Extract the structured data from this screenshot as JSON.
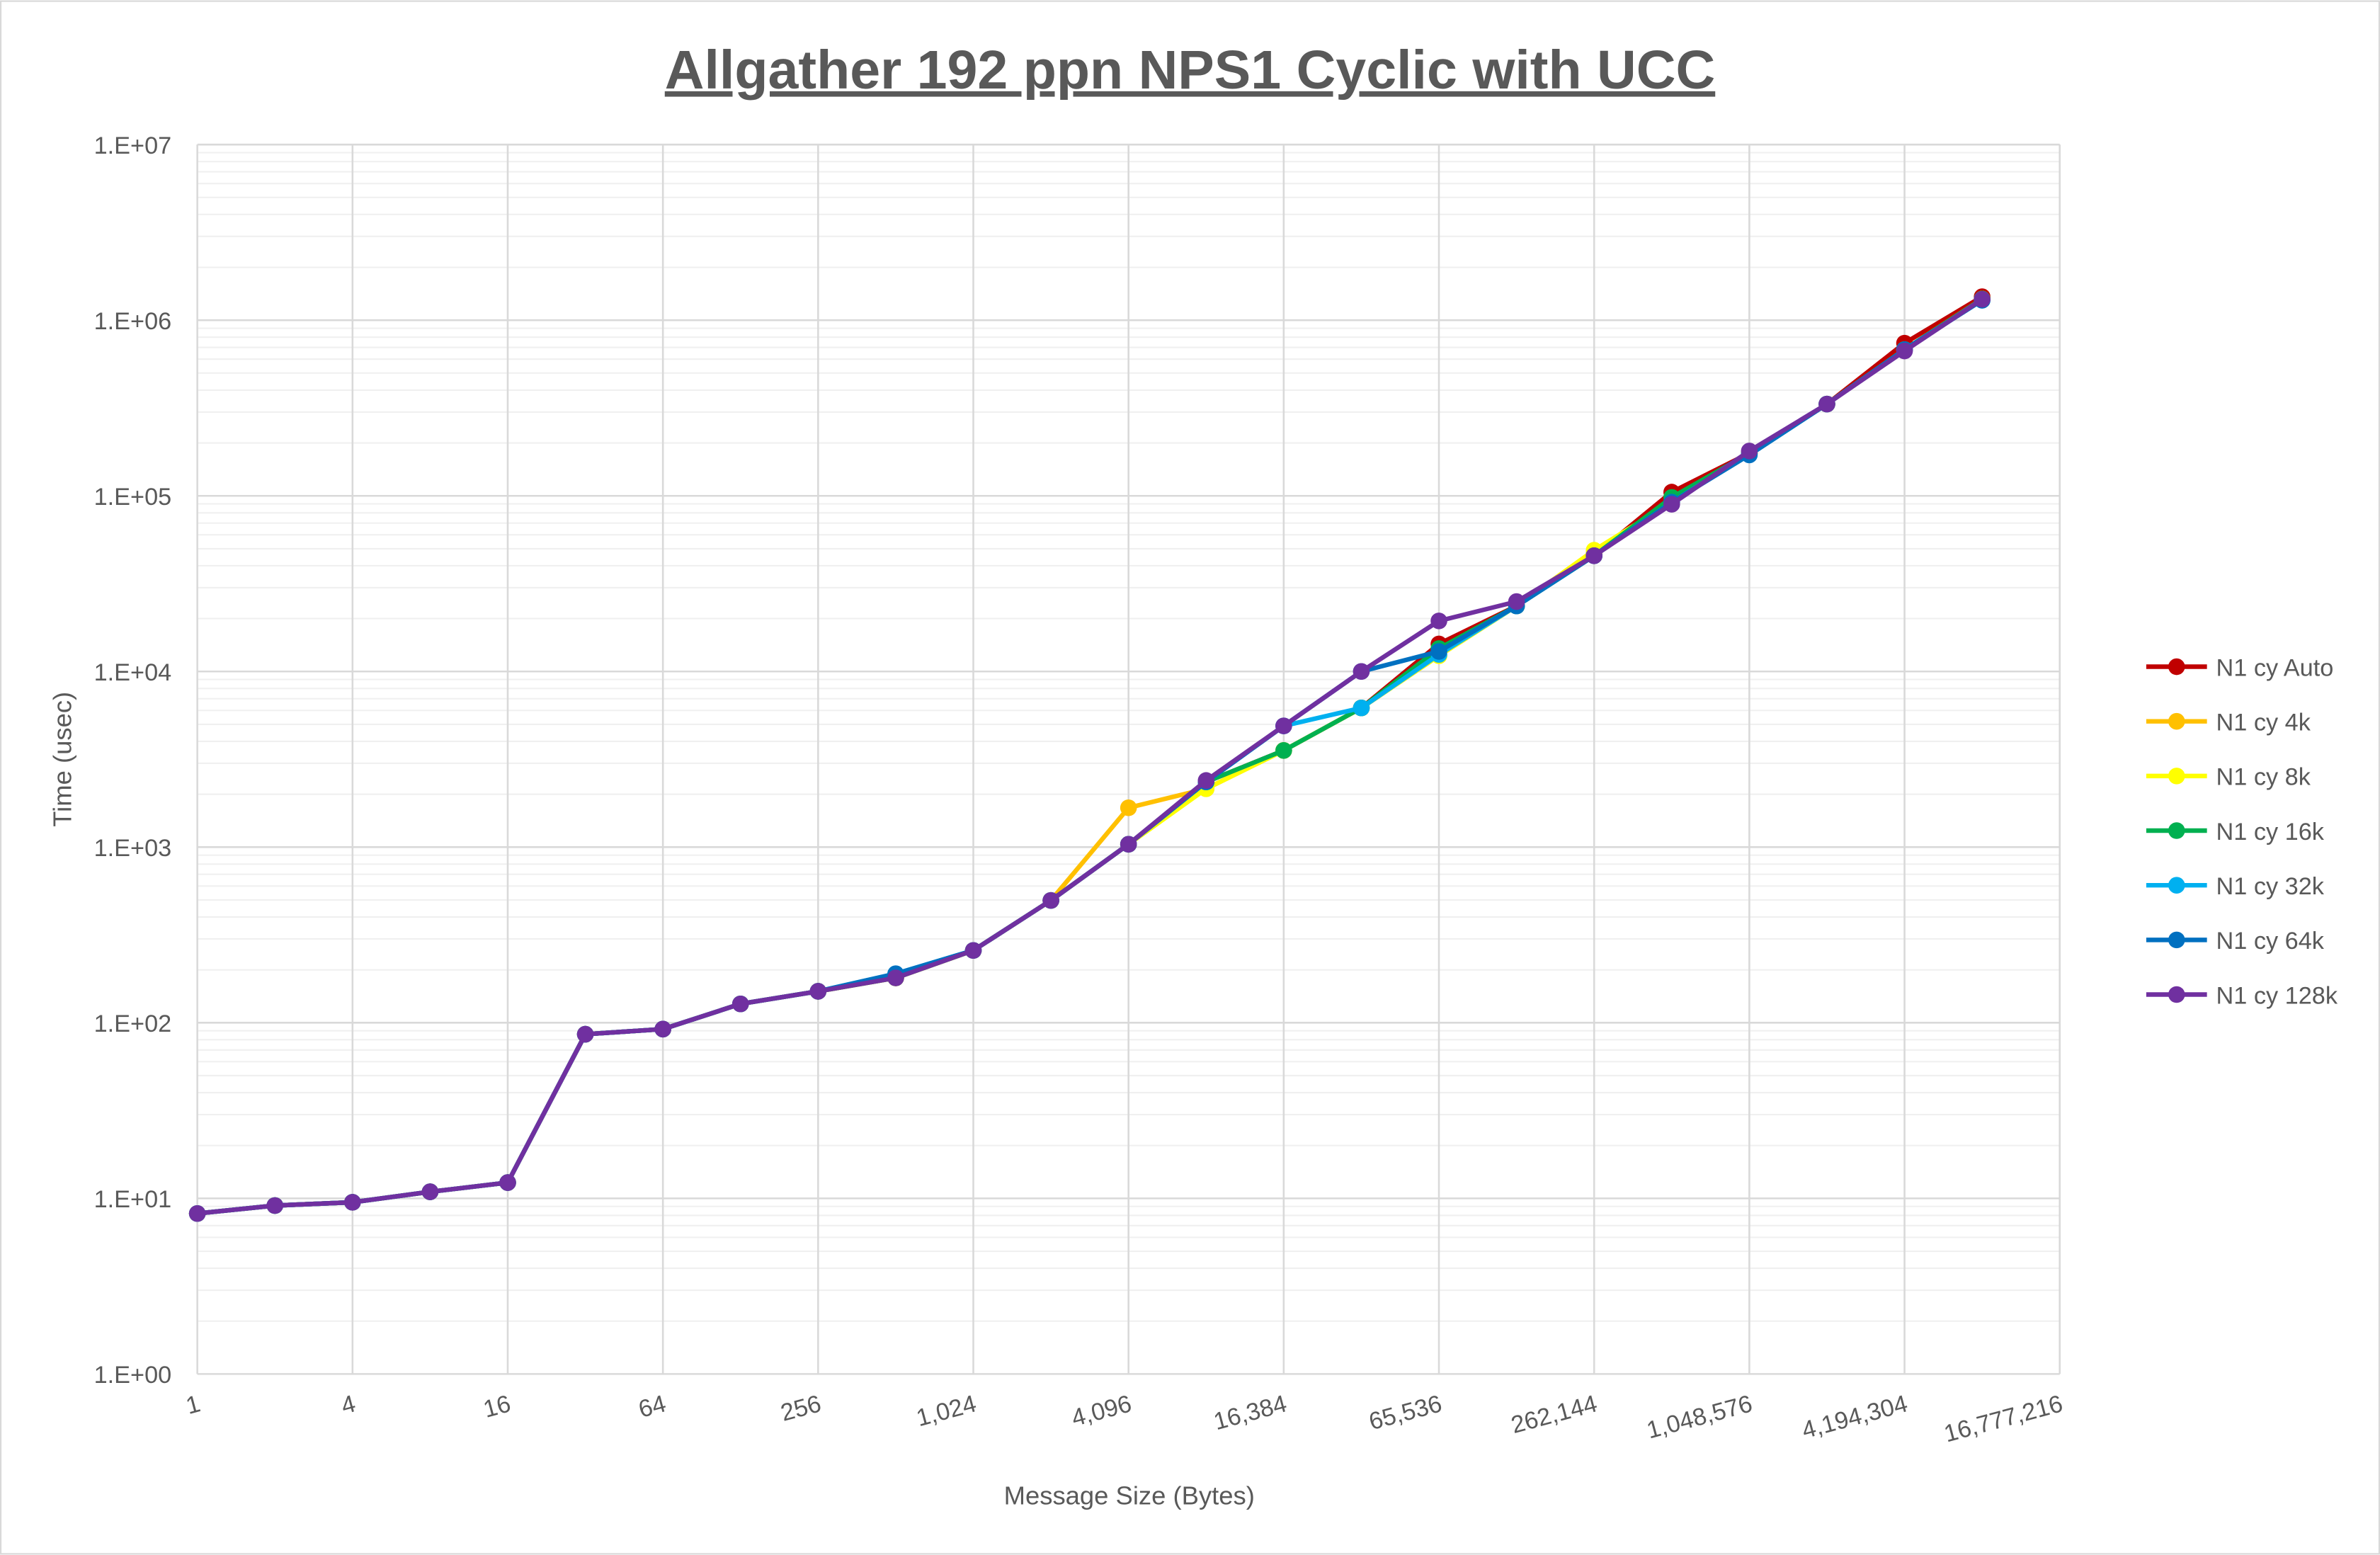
{
  "chart_data": {
    "type": "line",
    "title": "Allgather 192 ppn NPS1 Cyclic with UCC",
    "xlabel": "Message Size (Bytes)",
    "ylabel": "Time (usec)",
    "x_scale": "log2",
    "y_scale": "log10",
    "xlim": [
      1,
      16777216
    ],
    "ylim": [
      1,
      10000000
    ],
    "grid": true,
    "legend_position": "right",
    "x_tick_labels": [
      "1",
      "4",
      "16",
      "64",
      "256",
      "1,024",
      "4,096",
      "16,384",
      "65,536",
      "262,144",
      "1,048,576",
      "4,194,304",
      "16,777,216"
    ],
    "y_tick_labels": [
      "1.E+00",
      "1.E+01",
      "1.E+02",
      "1.E+03",
      "1.E+04",
      "1.E+05",
      "1.E+06",
      "1.E+07"
    ],
    "x": [
      1,
      2,
      4,
      8,
      16,
      32,
      64,
      128,
      256,
      512,
      1024,
      2048,
      4096,
      8192,
      16384,
      32768,
      65536,
      131072,
      262144,
      524288,
      1048576,
      2097152,
      4194304,
      8388608
    ],
    "series": [
      {
        "name": "N1 cy Auto",
        "color": "#C00000",
        "values": [
          8.2,
          9.1,
          9.5,
          10.9,
          12.3,
          86,
          92,
          128,
          151,
          180,
          258,
          497,
          1038,
          2350,
          3550,
          6200,
          14350,
          23600,
          45600,
          105000,
          175000,
          333000,
          740000,
          1360000
        ]
      },
      {
        "name": "N1 cy 4k",
        "color": "#FFC000",
        "values": [
          8.2,
          9.1,
          9.5,
          10.9,
          12.3,
          86,
          92,
          128,
          151,
          180,
          258,
          497,
          1675,
          2150,
          3550,
          6200,
          12300,
          23600,
          47000,
          92000,
          175000,
          333000,
          680000,
          1320000
        ]
      },
      {
        "name": "N1 cy 8k",
        "color": "#FFFF00",
        "values": [
          8.2,
          9.1,
          9.5,
          10.9,
          12.3,
          86,
          92,
          128,
          151,
          180,
          258,
          497,
          1038,
          2150,
          3550,
          6200,
          12300,
          23600,
          49000,
          92000,
          175000,
          333000,
          680000,
          1320000
        ]
      },
      {
        "name": "N1 cy 16k",
        "color": "#00B050",
        "values": [
          8.2,
          9.1,
          9.5,
          10.9,
          12.3,
          86,
          92,
          128,
          151,
          180,
          258,
          497,
          1038,
          2350,
          3550,
          6200,
          13500,
          23600,
          45600,
          98000,
          175000,
          333000,
          680000,
          1320000
        ]
      },
      {
        "name": "N1 cy 32k",
        "color": "#00B0F0",
        "values": [
          8.2,
          9.1,
          9.5,
          10.9,
          12.3,
          86,
          92,
          128,
          151,
          190,
          258,
          497,
          1038,
          2350,
          4900,
          6200,
          12500,
          23600,
          45600,
          92000,
          173000,
          333000,
          680000,
          1300000
        ]
      },
      {
        "name": "N1 cy 64k",
        "color": "#0070C0",
        "values": [
          8.2,
          9.1,
          9.5,
          10.9,
          12.3,
          86,
          92,
          128,
          151,
          190,
          258,
          497,
          1038,
          2350,
          4900,
          10000,
          13000,
          23600,
          45600,
          92000,
          171000,
          333000,
          680000,
          1300000
        ]
      },
      {
        "name": "N1 cy 128k",
        "color": "#7030A0",
        "values": [
          8.2,
          9.1,
          9.5,
          10.9,
          12.3,
          86,
          92,
          128,
          151,
          180,
          258,
          497,
          1038,
          2395,
          4900,
          10000,
          19400,
          25000,
          45600,
          89600,
          180000,
          333000,
          668000,
          1316000
        ]
      }
    ]
  }
}
